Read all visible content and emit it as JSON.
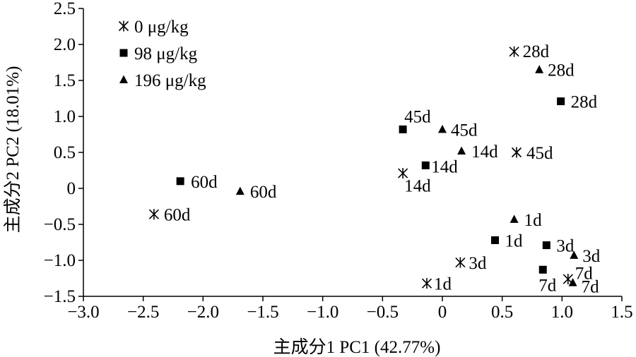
{
  "chart_data": {
    "type": "scatter",
    "xlabel": "主成分1  PC1 (42.77%)",
    "ylabel": "主成分2 PC2 (18.01%)",
    "xlim": [
      -3.0,
      1.5
    ],
    "ylim": [
      -1.5,
      2.5
    ],
    "x_ticks": [
      -3.0,
      -2.5,
      -2.0,
      -1.5,
      -1.0,
      -0.5,
      0,
      0.5,
      1.0,
      1.5
    ],
    "x_tick_labels": [
      "−3.0",
      "−2.5",
      "−2.0",
      "−1.5",
      "−1.0",
      "−0.5",
      "0",
      "0.5",
      "1.0",
      "1.5"
    ],
    "y_ticks": [
      -1.5,
      -1.0,
      -0.5,
      0,
      0.5,
      1.0,
      1.5,
      2.0,
      2.5
    ],
    "y_tick_labels": [
      "−1.5",
      "−1.0",
      "−0.5",
      "0",
      "0.5",
      "1.0",
      "1.5",
      "2.0",
      "2.5"
    ],
    "grid": false,
    "legend_position": "top-left",
    "series": [
      {
        "name": "0 μg/kg",
        "marker": "asterisk",
        "points": [
          {
            "x": -0.13,
            "y": -1.32,
            "label": "1d"
          },
          {
            "x": 0.15,
            "y": -1.03,
            "label": "3d"
          },
          {
            "x": 1.05,
            "y": -1.26,
            "label": "7d"
          },
          {
            "x": -0.33,
            "y": 0.21,
            "label": "14d"
          },
          {
            "x": 0.6,
            "y": 1.9,
            "label": "28d"
          },
          {
            "x": 0.62,
            "y": 0.5,
            "label": "45d"
          },
          {
            "x": -2.41,
            "y": -0.36,
            "label": "60d"
          }
        ]
      },
      {
        "name": "98 μg/kg",
        "marker": "square",
        "points": [
          {
            "x": 0.44,
            "y": -0.72,
            "label": "1d"
          },
          {
            "x": 0.87,
            "y": -0.79,
            "label": "3d"
          },
          {
            "x": 0.84,
            "y": -1.13,
            "label": "7d"
          },
          {
            "x": -0.14,
            "y": 0.32,
            "label": "14d"
          },
          {
            "x": 0.99,
            "y": 1.21,
            "label": "28d"
          },
          {
            "x": -0.33,
            "y": 0.82,
            "label": "45d"
          },
          {
            "x": -2.19,
            "y": 0.1,
            "label": "60d"
          }
        ]
      },
      {
        "name": "196 μg/kg",
        "marker": "triangle",
        "points": [
          {
            "x": 0.6,
            "y": -0.43,
            "label": "1d"
          },
          {
            "x": 1.1,
            "y": -0.93,
            "label": "3d"
          },
          {
            "x": 1.09,
            "y": -1.31,
            "label": "7d"
          },
          {
            "x": 0.16,
            "y": 0.52,
            "label": "14d"
          },
          {
            "x": 0.81,
            "y": 1.65,
            "label": "28d"
          },
          {
            "x": 0.0,
            "y": 0.82,
            "label": "45d"
          },
          {
            "x": -1.69,
            "y": -0.04,
            "label": "60d"
          }
        ]
      }
    ]
  }
}
